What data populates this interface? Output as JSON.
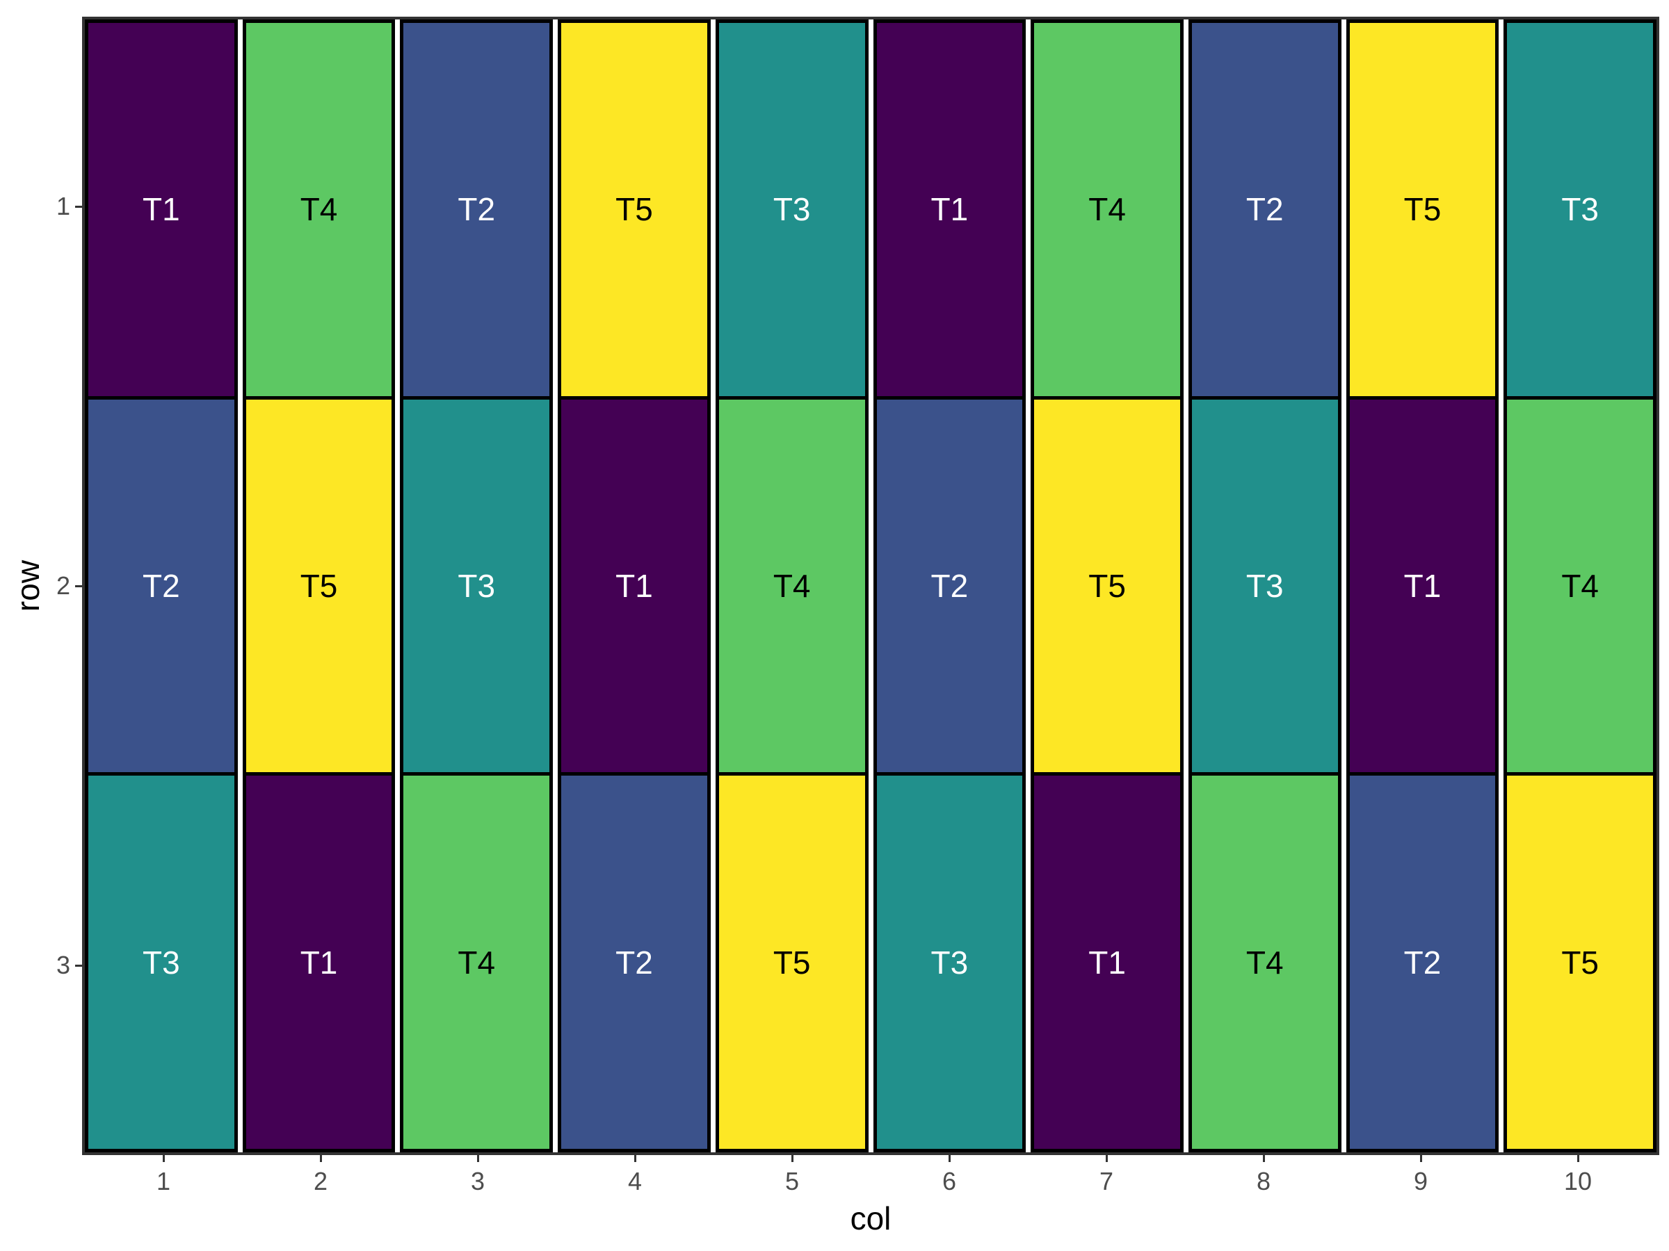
{
  "figure": {
    "background": "#FFFFFF"
  },
  "chart_data": {
    "type": "heatmap",
    "title": "",
    "xlabel": "col",
    "ylabel": "row",
    "x_ticks": [
      "1",
      "2",
      "3",
      "4",
      "5",
      "6",
      "7",
      "8",
      "9",
      "10"
    ],
    "y_ticks": [
      "1",
      "2",
      "3"
    ],
    "rows": [
      {
        "row": "1",
        "cells": [
          "T1",
          "T4",
          "T2",
          "T5",
          "T3",
          "T1",
          "T4",
          "T2",
          "T5",
          "T3"
        ]
      },
      {
        "row": "2",
        "cells": [
          "T2",
          "T5",
          "T3",
          "T1",
          "T4",
          "T2",
          "T5",
          "T3",
          "T1",
          "T4"
        ]
      },
      {
        "row": "3",
        "cells": [
          "T3",
          "T1",
          "T4",
          "T2",
          "T5",
          "T3",
          "T1",
          "T4",
          "T2",
          "T5"
        ]
      }
    ],
    "fill_colors": {
      "T1": "#440154",
      "T2": "#3B528B",
      "T3": "#21908C",
      "T4": "#5DC863",
      "T5": "#FDE725"
    },
    "label_colors": {
      "T1": "#FFFFFF",
      "T2": "#FFFFFF",
      "T3": "#FFFFFF",
      "T4": "#000000",
      "T5": "#000000"
    },
    "legend": "none",
    "grid": false,
    "axis_text_color": "#4D4D4D",
    "axis_title_color": "#000000",
    "panel_border_color": "#333333",
    "tile_border_color": "#000000"
  }
}
